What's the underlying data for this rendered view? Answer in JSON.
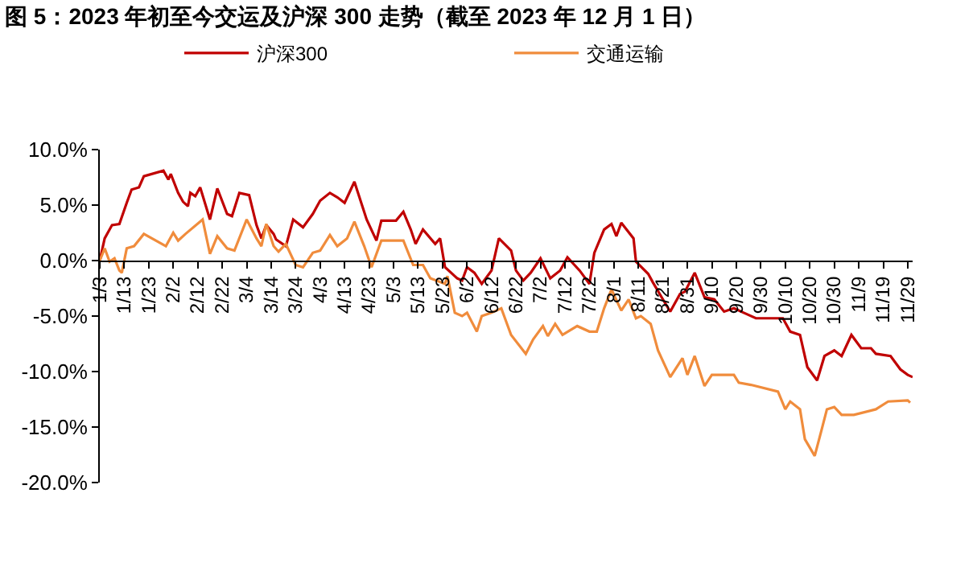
{
  "chart_data": {
    "type": "line",
    "title": "图 5：2023 年初至今交运及沪深 300 走势（截至 2023 年 12 月 1 日）",
    "series": [
      {
        "name": "沪深300",
        "color": "#c00000",
        "x": [
          "2023-01-03",
          "2023-01-05",
          "2023-01-08",
          "2023-01-11",
          "2023-01-14",
          "2023-01-16",
          "2023-01-19",
          "2023-01-21",
          "2023-01-29",
          "2023-01-31",
          "2023-02-01",
          "2023-02-04",
          "2023-02-06",
          "2023-02-08",
          "2023-02-09",
          "2023-02-11",
          "2023-02-13",
          "2023-02-17",
          "2023-02-20",
          "2023-02-24",
          "2023-02-26",
          "2023-03-01",
          "2023-03-05",
          "2023-03-08",
          "2023-03-10",
          "2023-03-12",
          "2023-03-15",
          "2023-03-16",
          "2023-03-20",
          "2023-03-23",
          "2023-03-27",
          "2023-03-31",
          "2023-04-03",
          "2023-04-07",
          "2023-04-10",
          "2023-04-13",
          "2023-04-17",
          "2023-04-22",
          "2023-04-26",
          "2023-04-28",
          "2023-05-04",
          "2023-05-07",
          "2023-05-10",
          "2023-05-12",
          "2023-05-15",
          "2023-05-20",
          "2023-05-22",
          "2023-05-24",
          "2023-05-29",
          "2023-05-31",
          "2023-06-02",
          "2023-06-05",
          "2023-06-08",
          "2023-06-12",
          "2023-06-15",
          "2023-06-20",
          "2023-06-22",
          "2023-06-25",
          "2023-06-28",
          "2023-07-02",
          "2023-07-06",
          "2023-07-10",
          "2023-07-13",
          "2023-07-18",
          "2023-07-22",
          "2023-07-24",
          "2023-07-28",
          "2023-07-31",
          "2023-08-02",
          "2023-08-04",
          "2023-08-09",
          "2023-08-10",
          "2023-08-15",
          "2023-08-17",
          "2023-08-21",
          "2023-08-24",
          "2023-08-28",
          "2023-08-30",
          "2023-09-03",
          "2023-09-07",
          "2023-09-11",
          "2023-09-15",
          "2023-09-19",
          "2023-09-23",
          "2023-09-28",
          "2023-10-09",
          "2023-10-12",
          "2023-10-16",
          "2023-10-19",
          "2023-10-23",
          "2023-10-26",
          "2023-10-30",
          "2023-11-02",
          "2023-11-06",
          "2023-11-10",
          "2023-11-14",
          "2023-11-16",
          "2023-11-22",
          "2023-11-26",
          "2023-11-29",
          "2023-12-01"
        ],
        "values": [
          0,
          2.0,
          3.2,
          3.3,
          5.2,
          6.4,
          6.6,
          7.6,
          8.1,
          7.3,
          7.8,
          6.1,
          5.3,
          4.9,
          6.1,
          5.8,
          6.6,
          3.7,
          6.5,
          4.2,
          4.0,
          6.1,
          5.9,
          3.2,
          2.0,
          3.2,
          2.4,
          1.9,
          1.3,
          3.7,
          3.0,
          4.2,
          5.4,
          6.1,
          5.7,
          5.2,
          7.1,
          3.7,
          1.8,
          3.6,
          3.6,
          4.4,
          2.8,
          1.5,
          2.8,
          1.5,
          2.0,
          -0.6,
          -1.6,
          -1.8,
          -0.6,
          -1.1,
          -2.1,
          -0.9,
          2.0,
          0.9,
          -0.9,
          -1.8,
          -1.1,
          0.2,
          -1.6,
          -0.9,
          0.3,
          -0.9,
          -2.1,
          0.7,
          2.8,
          3.3,
          2.2,
          3.4,
          2.0,
          -0.1,
          -1.2,
          -2.0,
          -3.5,
          -4.6,
          -3.0,
          -2.8,
          -1.1,
          -3.3,
          -3.5,
          -4.6,
          -4.3,
          -4.7,
          -5.2,
          -5.2,
          -6.4,
          -6.7,
          -9.6,
          -10.8,
          -8.6,
          -8.1,
          -8.6,
          -6.7,
          -7.9,
          -7.9,
          -8.4,
          -8.6,
          -9.8,
          -10.3,
          -10.5
        ]
      },
      {
        "name": "交通运输",
        "color": "#f08c3c",
        "x": [
          "2023-01-03",
          "2023-01-05",
          "2023-01-07",
          "2023-01-09",
          "2023-01-11",
          "2023-01-12",
          "2023-01-14",
          "2023-01-17",
          "2023-01-21",
          "2023-01-30",
          "2023-02-02",
          "2023-02-04",
          "2023-02-07",
          "2023-02-14",
          "2023-02-17",
          "2023-02-20",
          "2023-02-24",
          "2023-02-27",
          "2023-03-04",
          "2023-03-08",
          "2023-03-10",
          "2023-03-12",
          "2023-03-15",
          "2023-03-17",
          "2023-03-20",
          "2023-03-24",
          "2023-03-27",
          "2023-03-31",
          "2023-04-03",
          "2023-04-07",
          "2023-04-10",
          "2023-04-14",
          "2023-04-17",
          "2023-04-21",
          "2023-04-24",
          "2023-04-28",
          "2023-05-07",
          "2023-05-11",
          "2023-05-15",
          "2023-05-18",
          "2023-05-24",
          "2023-05-25",
          "2023-05-28",
          "2023-05-31",
          "2023-06-02",
          "2023-06-06",
          "2023-06-08",
          "2023-06-12",
          "2023-06-16",
          "2023-06-20",
          "2023-06-26",
          "2023-06-29",
          "2023-07-03",
          "2023-07-05",
          "2023-07-08",
          "2023-07-11",
          "2023-07-17",
          "2023-07-22",
          "2023-07-25",
          "2023-07-28",
          "2023-07-31",
          "2023-08-04",
          "2023-08-07",
          "2023-08-10",
          "2023-08-12",
          "2023-08-16",
          "2023-08-19",
          "2023-08-24",
          "2023-08-29",
          "2023-08-31",
          "2023-09-03",
          "2023-09-07",
          "2023-09-10",
          "2023-09-19",
          "2023-09-21",
          "2023-09-26",
          "2023-10-07",
          "2023-10-10",
          "2023-10-12",
          "2023-10-16",
          "2023-10-18",
          "2023-10-22",
          "2023-10-25",
          "2023-10-27",
          "2023-10-30",
          "2023-11-02",
          "2023-11-07",
          "2023-11-16",
          "2023-11-21",
          "2023-11-29",
          "2023-11-30"
        ],
        "values": [
          0,
          1.1,
          -0.1,
          0.2,
          -0.9,
          -1.1,
          1.1,
          1.3,
          2.4,
          1.3,
          2.5,
          1.8,
          2.4,
          3.7,
          0.6,
          2.2,
          1.1,
          0.9,
          3.7,
          2.0,
          1.3,
          3.3,
          1.3,
          0.8,
          1.5,
          -0.4,
          -0.6,
          0.7,
          0.9,
          2.3,
          1.3,
          2.0,
          3.5,
          1.3,
          -0.6,
          1.8,
          1.8,
          -0.4,
          -0.4,
          -1.6,
          -2.1,
          -1.4,
          -4.7,
          -5.0,
          -4.7,
          -6.4,
          -5.0,
          -4.7,
          -4.3,
          -6.7,
          -8.4,
          -7.1,
          -5.9,
          -6.8,
          -5.7,
          -6.7,
          -5.9,
          -6.4,
          -6.4,
          -4.3,
          -2.6,
          -4.5,
          -3.5,
          -5.2,
          -5.0,
          -5.7,
          -8.1,
          -10.5,
          -8.8,
          -10.3,
          -8.6,
          -11.3,
          -10.3,
          -10.3,
          -11.0,
          -11.2,
          -11.8,
          -13.4,
          -12.7,
          -13.4,
          -16.1,
          -17.6,
          -15.1,
          -13.4,
          -13.2,
          -13.9,
          -13.9,
          -13.4,
          -12.7,
          -12.6,
          -12.8
        ]
      }
    ],
    "xlim": [
      "2023-01-03",
      "2023-12-01"
    ],
    "xticks": [
      {
        "value": "2023-01-03",
        "label": "1/3"
      },
      {
        "value": "2023-01-13",
        "label": "1/13"
      },
      {
        "value": "2023-01-23",
        "label": "1/23"
      },
      {
        "value": "2023-02-02",
        "label": "2/2"
      },
      {
        "value": "2023-02-12",
        "label": "2/12"
      },
      {
        "value": "2023-02-22",
        "label": "2/22"
      },
      {
        "value": "2023-03-04",
        "label": "3/4"
      },
      {
        "value": "2023-03-14",
        "label": "3/14"
      },
      {
        "value": "2023-03-24",
        "label": "3/24"
      },
      {
        "value": "2023-04-03",
        "label": "4/3"
      },
      {
        "value": "2023-04-13",
        "label": "4/13"
      },
      {
        "value": "2023-04-23",
        "label": "4/23"
      },
      {
        "value": "2023-05-03",
        "label": "5/3"
      },
      {
        "value": "2023-05-13",
        "label": "5/13"
      },
      {
        "value": "2023-05-23",
        "label": "5/23"
      },
      {
        "value": "2023-06-02",
        "label": "6/2"
      },
      {
        "value": "2023-06-12",
        "label": "6/12"
      },
      {
        "value": "2023-06-22",
        "label": "6/22"
      },
      {
        "value": "2023-07-02",
        "label": "7/2"
      },
      {
        "value": "2023-07-12",
        "label": "7/12"
      },
      {
        "value": "2023-07-22",
        "label": "7/22"
      },
      {
        "value": "2023-08-01",
        "label": "8/1"
      },
      {
        "value": "2023-08-11",
        "label": "8/11"
      },
      {
        "value": "2023-08-21",
        "label": "8/21"
      },
      {
        "value": "2023-08-31",
        "label": "8/31"
      },
      {
        "value": "2023-09-10",
        "label": "9/10"
      },
      {
        "value": "2023-09-20",
        "label": "9/20"
      },
      {
        "value": "2023-09-30",
        "label": "9/30"
      },
      {
        "value": "2023-10-10",
        "label": "10/10"
      },
      {
        "value": "2023-10-20",
        "label": "10/20"
      },
      {
        "value": "2023-10-30",
        "label": "10/30"
      },
      {
        "value": "2023-11-09",
        "label": "11/9"
      },
      {
        "value": "2023-11-19",
        "label": "11/19"
      },
      {
        "value": "2023-11-29",
        "label": "11/29"
      }
    ],
    "ylim": [
      -20,
      10
    ],
    "yticks": [
      {
        "value": 10,
        "label": "10.0%"
      },
      {
        "value": 5,
        "label": "5.0%"
      },
      {
        "value": 0,
        "label": "0.0%"
      },
      {
        "value": -5,
        "label": "-5.0%"
      },
      {
        "value": -10,
        "label": "-10.0%"
      },
      {
        "value": -15,
        "label": "-15.0%"
      },
      {
        "value": -20,
        "label": "-20.0%"
      }
    ],
    "legend": "top",
    "marker": "none",
    "line_style": "solid"
  }
}
